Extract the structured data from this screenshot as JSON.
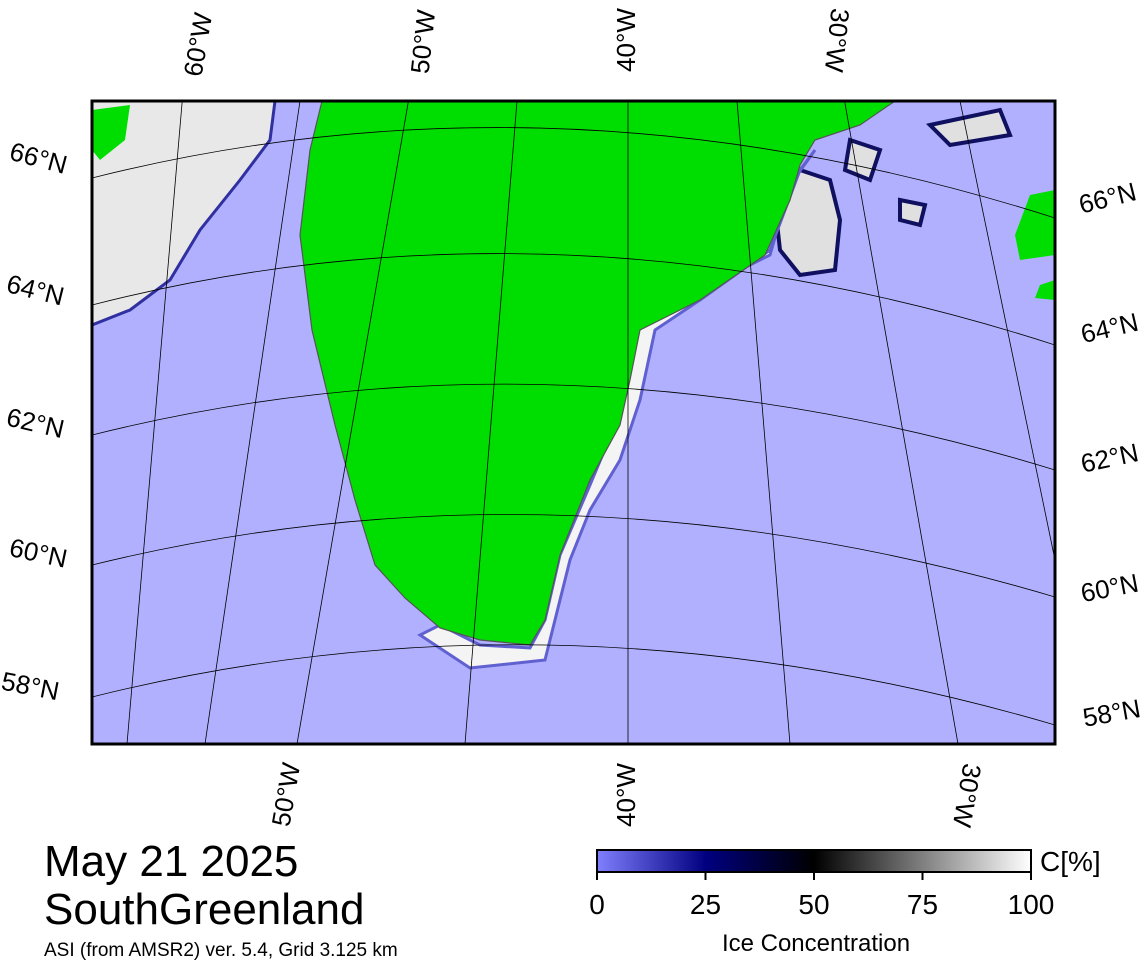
{
  "map": {
    "date": "May 21 2025",
    "region": "SouthGreenland",
    "source": "ASI (from AMSR2) ver. 5.4,  Grid 3.125 km",
    "top_labels": [
      "60°W",
      "50°W",
      "40°W",
      "30°W"
    ],
    "bottom_labels": [
      "50°W",
      "40°W",
      "30°W"
    ],
    "left_labels": [
      "66°N",
      "64°N",
      "62°N",
      "60°N",
      "58°N"
    ],
    "right_labels": [
      "66°N",
      "64°N",
      "62°N",
      "60°N",
      "58°N"
    ]
  },
  "colorbar": {
    "label": "Ice Concentration",
    "unit": "C[%]",
    "lim": [
      0,
      100
    ],
    "ticks": [
      0,
      25,
      50,
      75,
      100
    ]
  }
}
